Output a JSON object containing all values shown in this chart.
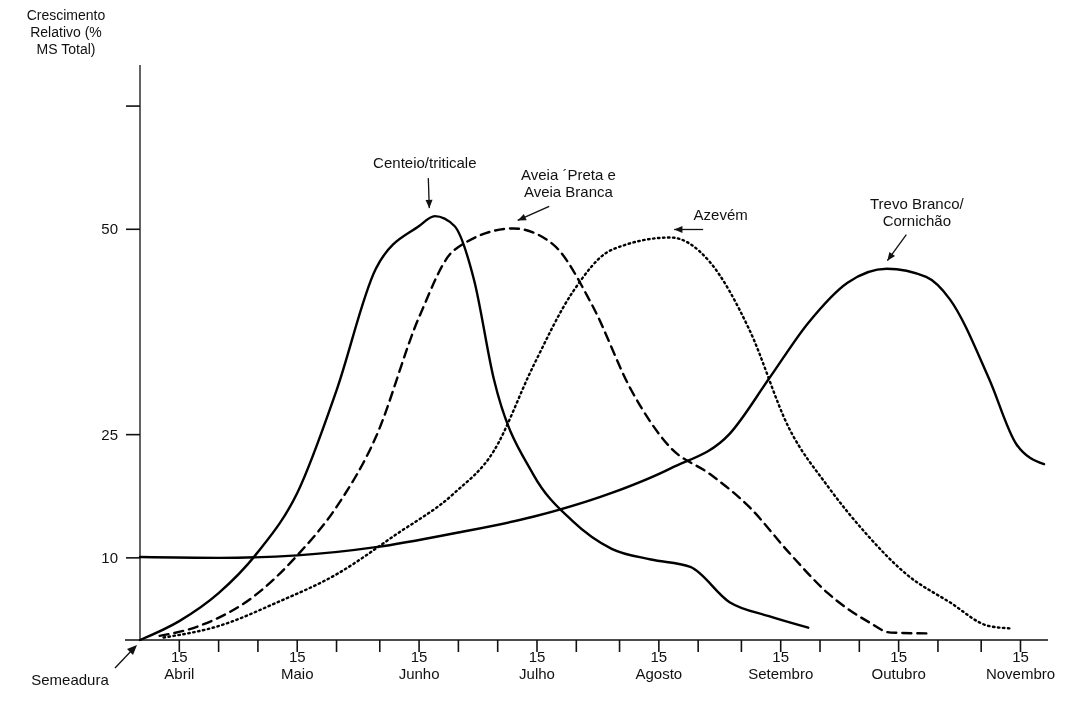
{
  "chart_data": {
    "type": "line",
    "ylabel": "Crescimento Relativo (% MS Total)",
    "xlim": [
      "--04-05",
      "--11-22"
    ],
    "xticks": [
      {
        "value": "--04-15",
        "label": "15 Abril"
      },
      {
        "value": "--04-25",
        "label": null
      },
      {
        "value": "--05-05",
        "label": null
      },
      {
        "value": "--05-15",
        "label": "15 Maio"
      },
      {
        "value": "--05-25",
        "label": null
      },
      {
        "value": "--06-05",
        "label": null
      },
      {
        "value": "--06-15",
        "label": "15 Junho"
      },
      {
        "value": "--06-25",
        "label": null
      },
      {
        "value": "--07-05",
        "label": null
      },
      {
        "value": "--07-15",
        "label": "15 Julho"
      },
      {
        "value": "--07-25",
        "label": null
      },
      {
        "value": "--08-05",
        "label": null
      },
      {
        "value": "--08-15",
        "label": "15 Agosto"
      },
      {
        "value": "--08-25",
        "label": null
      },
      {
        "value": "--09-05",
        "label": null
      },
      {
        "value": "--09-15",
        "label": "15 Setembro"
      },
      {
        "value": "--09-25",
        "label": null
      },
      {
        "value": "--10-05",
        "label": null
      },
      {
        "value": "--10-15",
        "label": "15 Outubro"
      },
      {
        "value": "--10-25",
        "label": null
      },
      {
        "value": "--11-05",
        "label": null
      },
      {
        "value": "--11-15",
        "label": "15 Novembro"
      }
    ],
    "ylim": [
      0,
      70
    ],
    "yticks": [
      10,
      25,
      50,
      {
        "value": 65,
        "label": null
      }
    ],
    "grid": false,
    "legend": false,
    "marker": "none",
    "annotations": [
      {
        "text": "Semeadura",
        "x": "--04-05",
        "y": 0
      }
    ],
    "series": [
      {
        "name": "Centeio/triticale",
        "color": "#000000",
        "line_style": "solid",
        "x": [
          "--04-05",
          "--04-15",
          "--04-25",
          "--05-05",
          "--05-15",
          "--05-25",
          "--06-04",
          "--06-15",
          "--06-19",
          "--06-24",
          "--06-29",
          "--07-04",
          "--07-14",
          "--07-24",
          "--08-03",
          "--08-13",
          "--08-23",
          "--09-02",
          "--09-12",
          "--09-22"
        ],
        "values": [
          0,
          2.3,
          5.7,
          10.7,
          17.9,
          30.4,
          45.2,
          50.4,
          51.6,
          50.4,
          43.8,
          31.8,
          20.2,
          14.5,
          11.1,
          9.8,
          8.9,
          4.6,
          2.9,
          1.5
        ]
      },
      {
        "name": "Aveia ´Preta e Aveia Branca",
        "color": "#000000",
        "line_style": "dashed",
        "x": [
          "--04-10",
          "--04-20",
          "--05-05",
          "--05-15",
          "--05-25",
          "--06-04",
          "--06-15",
          "--06-24",
          "--07-09",
          "--07-19",
          "--07-29",
          "--08-08",
          "--08-18",
          "--08-28",
          "--09-07",
          "--09-17",
          "--09-27",
          "--10-07",
          "--10-13",
          "--10-23"
        ],
        "values": [
          0.5,
          1.7,
          5.7,
          10.3,
          16.2,
          24.7,
          39.3,
          47.5,
          50.1,
          48.2,
          40.8,
          30.4,
          23.4,
          20.2,
          16.2,
          10.7,
          5.7,
          2.3,
          0.9,
          0.8
        ]
      },
      {
        "name": "Azevém",
        "color": "#000000",
        "line_style": "dotted",
        "x": [
          "--04-11",
          "--04-25",
          "--05-10",
          "--05-25",
          "--06-09",
          "--06-24",
          "--07-04",
          "--07-14",
          "--07-24",
          "--08-03",
          "--08-18",
          "--08-28",
          "--09-07",
          "--09-17",
          "--09-27",
          "--10-07",
          "--10-17",
          "--10-28",
          "--11-07",
          "--11-13"
        ],
        "values": [
          0.3,
          1.7,
          4.6,
          8.0,
          12.8,
          17.9,
          23.0,
          33.3,
          42.3,
          47.5,
          49.0,
          46.0,
          37.8,
          25.9,
          18.7,
          12.8,
          8.0,
          4.6,
          1.7,
          1.4
        ]
      },
      {
        "name": "Trevo Branco/Cornichão",
        "color": "#000000",
        "line_style": "solid",
        "x": [
          "--04-05",
          "--04-25",
          "--05-15",
          "--06-04",
          "--06-24",
          "--07-14",
          "--08-03",
          "--08-18",
          "--09-02",
          "--09-12",
          "--09-22",
          "--10-02",
          "--10-12",
          "--10-22",
          "--10-28",
          "--11-07",
          "--11-14",
          "--11-21"
        ],
        "values": [
          10.1,
          10.0,
          10.3,
          11.3,
          13.0,
          15.0,
          17.9,
          20.9,
          25.1,
          31.8,
          38.6,
          43.5,
          45.2,
          44.2,
          41.5,
          31.8,
          23.8,
          21.4
        ]
      }
    ]
  }
}
